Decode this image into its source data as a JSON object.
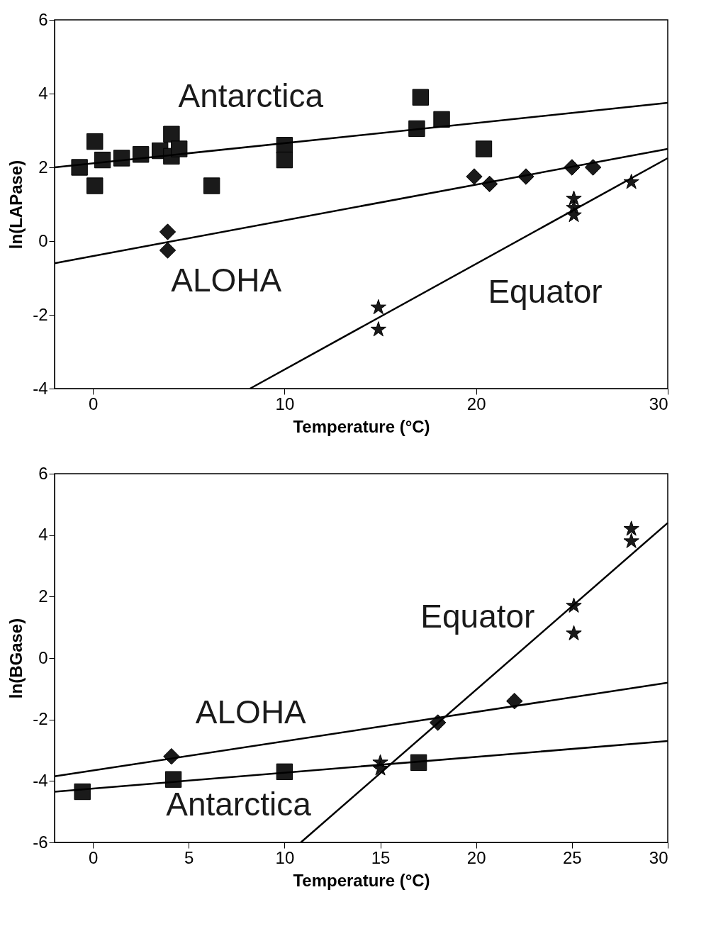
{
  "chart_data": [
    {
      "type": "scatter",
      "xlabel": "Temperature (°C)",
      "ylabel": "ln(LAPase)",
      "xlim": [
        -2,
        30
      ],
      "ylim": [
        -4,
        6
      ],
      "xticks": [
        0,
        10,
        20,
        30
      ],
      "yticks": [
        -4,
        -2,
        0,
        2,
        4,
        6
      ],
      "grid": false,
      "series": [
        {
          "name": "Antarctica",
          "marker": "square",
          "color": "#1a1a1a",
          "x": [
            -0.7,
            0.1,
            0.1,
            0.5,
            1.5,
            2.5,
            3.5,
            4.1,
            4.1,
            4.5,
            6.2,
            10,
            10,
            17.1,
            16.9,
            18.2,
            20.4
          ],
          "values": [
            2.0,
            2.7,
            1.5,
            2.2,
            2.25,
            2.35,
            2.45,
            2.9,
            2.3,
            2.5,
            1.5,
            2.6,
            2.2,
            3.9,
            3.05,
            3.3,
            2.5
          ]
        },
        {
          "name": "ALOHA",
          "marker": "diamond",
          "color": "#1a1a1a",
          "x": [
            3.9,
            3.9,
            19.9,
            20.7,
            22.6,
            25.0,
            26.1
          ],
          "values": [
            0.25,
            -0.25,
            1.75,
            1.55,
            1.75,
            2.0,
            2.0
          ]
        },
        {
          "name": "Equator",
          "marker": "star",
          "color": "#1a1a1a",
          "x": [
            14.9,
            14.9,
            25.1,
            25.1,
            25.1,
            28.1
          ],
          "values": [
            -1.8,
            -2.4,
            1.15,
            0.9,
            0.7,
            1.6
          ]
        },
        {
          "type": "line",
          "color": "#000000",
          "x": [
            -2,
            30
          ],
          "values": [
            2.0,
            3.75
          ]
        },
        {
          "type": "line",
          "color": "#000000",
          "x": [
            -2,
            30
          ],
          "values": [
            -0.6,
            2.5
          ]
        },
        {
          "type": "line",
          "color": "#000000",
          "x": [
            8.2,
            30
          ],
          "values": [
            -4,
            2.25
          ]
        }
      ]
    },
    {
      "type": "scatter",
      "xlabel": "Temperature (°C)",
      "ylabel": "ln(BGase)",
      "xlim": [
        -2,
        30
      ],
      "ylim": [
        -6,
        6
      ],
      "xticks": [
        0,
        5,
        10,
        15,
        20,
        25,
        30
      ],
      "yticks": [
        -6,
        -4,
        -2,
        0,
        2,
        4,
        6
      ],
      "grid": false,
      "series": [
        {
          "name": "Antarctica",
          "marker": "square",
          "color": "#1a1a1a",
          "x": [
            -0.55,
            4.2,
            10.0,
            17.0
          ],
          "values": [
            -4.35,
            -3.95,
            -3.7,
            -3.4
          ]
        },
        {
          "name": "ALOHA",
          "marker": "diamond",
          "color": "#1a1a1a",
          "x": [
            4.1,
            18.0,
            22.0
          ],
          "values": [
            -3.2,
            -2.1,
            -1.4
          ]
        },
        {
          "name": "Equator",
          "marker": "star",
          "color": "#1a1a1a",
          "x": [
            15.0,
            15.0,
            25.1,
            25.1,
            28.1,
            28.1
          ],
          "values": [
            -3.4,
            -3.6,
            1.7,
            0.8,
            4.2,
            3.8
          ]
        },
        {
          "type": "line",
          "color": "#000000",
          "x": [
            -2,
            30
          ],
          "values": [
            -4.35,
            -2.7
          ]
        },
        {
          "type": "line",
          "color": "#000000",
          "x": [
            -2,
            30
          ],
          "values": [
            -3.85,
            -0.8
          ]
        },
        {
          "type": "line",
          "color": "#000000",
          "x": [
            10.85,
            30
          ],
          "values": [
            -6,
            4.4
          ]
        }
      ]
    }
  ]
}
